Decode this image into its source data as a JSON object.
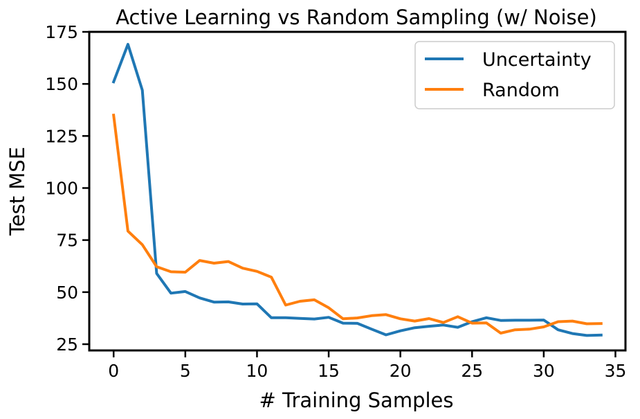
{
  "chart_data": {
    "type": "line",
    "title": "Active Learning vs Random Sampling (w/ Noise)",
    "xlabel": "# Training Samples",
    "ylabel": "Test MSE",
    "xlim": [
      -1.7,
      35.7
    ],
    "ylim": [
      22,
      175
    ],
    "xticks": [
      0,
      5,
      10,
      15,
      20,
      25,
      30,
      35
    ],
    "yticks": [
      25,
      50,
      75,
      100,
      125,
      150,
      175
    ],
    "grid": false,
    "legend_position": "top-right",
    "x": [
      0,
      1,
      2,
      3,
      4,
      5,
      6,
      7,
      8,
      9,
      10,
      11,
      12,
      13,
      14,
      15,
      16,
      17,
      18,
      19,
      20,
      21,
      22,
      23,
      24,
      25,
      26,
      27,
      28,
      29,
      30,
      31,
      32,
      33,
      34
    ],
    "series": [
      {
        "name": "Uncertainty",
        "color": "#1f77b4",
        "values": [
          151,
          169,
          147,
          59,
          49.5,
          50.3,
          47.2,
          45.2,
          45.3,
          44.3,
          44.4,
          37.7,
          37.7,
          37.4,
          37.1,
          37.9,
          35.1,
          35.0,
          32.2,
          29.5,
          31.4,
          32.9,
          33.6,
          34.2,
          33.1,
          35.8,
          37.7,
          36.4,
          36.5,
          36.5,
          36.6,
          31.9,
          30.1,
          29.2,
          29.4
        ]
      },
      {
        "name": "Random",
        "color": "#ff7f0e",
        "values": [
          135,
          79.3,
          72.8,
          62.2,
          59.8,
          59.6,
          65.2,
          63.9,
          64.7,
          61.5,
          60,
          57.2,
          43.8,
          45.6,
          46.3,
          42.5,
          37.2,
          37.6,
          38.7,
          39.2,
          37.2,
          36.1,
          37.3,
          35.4,
          38.2,
          35.1,
          35.2,
          30.3,
          31.9,
          32.2,
          33.3,
          35.8,
          36.1,
          34.8,
          34.9
        ]
      }
    ]
  }
}
